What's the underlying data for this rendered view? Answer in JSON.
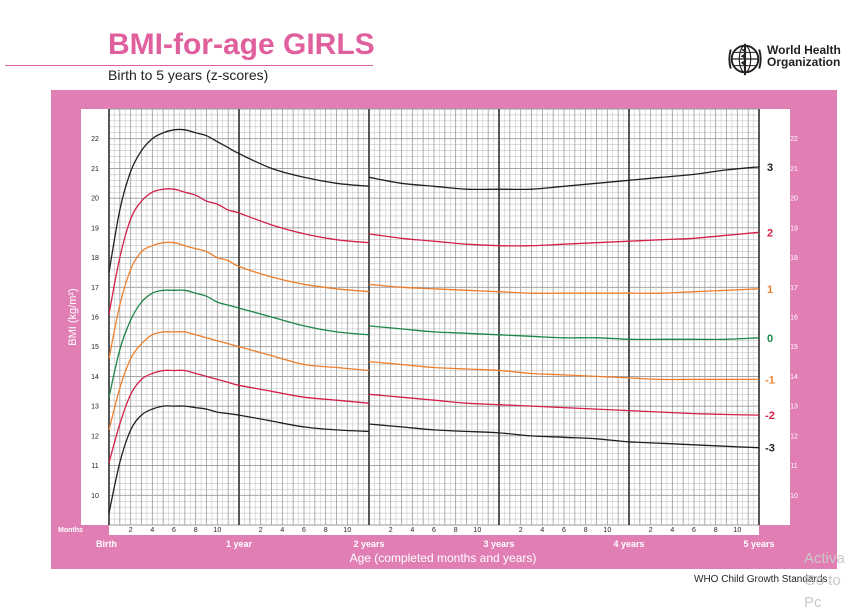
{
  "header": {
    "title": "BMI-for-age GIRLS",
    "subtitle": "Birth to 5 years (z-scores)",
    "org_line1": "World Health",
    "org_line2": "Organization",
    "logo_icon": "who-emblem-icon"
  },
  "footer": {
    "text": "WHO Child Growth Standards",
    "watermark_line1": "Activa",
    "watermark_line2": "Go to Pc"
  },
  "colors": {
    "frame": "#e17fb5",
    "grid": "#9a9a9a",
    "sd3": "#231f20",
    "sd2": "#d4204a",
    "sd1": "#ee7f2d",
    "median": "#1d8648",
    "title": "#e0609e"
  },
  "chart_data": {
    "type": "line",
    "title": "BMI-for-age GIRLS",
    "subtitle": "Birth to 5 years (z-scores)",
    "xlabel": "Age (completed months and years)",
    "ylabel": "BMI (kg/m²)",
    "x_unit_label": "Months",
    "xlim": [
      0,
      60
    ],
    "ylim": [
      9,
      23
    ],
    "grid": true,
    "y_ticks": [
      10,
      11,
      12,
      13,
      14,
      15,
      16,
      17,
      18,
      19,
      20,
      21,
      22
    ],
    "x_month_ticks": [
      2,
      4,
      6,
      8,
      10
    ],
    "x_year_labels": [
      {
        "month": 0,
        "label": "Birth"
      },
      {
        "month": 12,
        "label": "1 year"
      },
      {
        "month": 24,
        "label": "2 years"
      },
      {
        "month": 36,
        "label": "3 years"
      },
      {
        "month": 48,
        "label": "4 years"
      },
      {
        "month": 60,
        "label": "5 years"
      }
    ],
    "series": [
      {
        "name": "3",
        "color": "#231f20",
        "x": [
          0,
          1,
          2,
          3,
          4,
          5,
          6,
          7,
          8,
          9,
          10,
          11,
          12,
          15,
          18,
          21,
          24,
          24,
          27,
          30,
          33,
          36,
          39,
          42,
          45,
          48,
          51,
          54,
          57,
          60
        ],
        "y": [
          17.5,
          19.6,
          20.9,
          21.6,
          22.0,
          22.2,
          22.3,
          22.3,
          22.2,
          22.1,
          21.9,
          21.7,
          21.5,
          21.0,
          20.7,
          20.5,
          20.4,
          20.7,
          20.5,
          20.4,
          20.3,
          20.3,
          20.3,
          20.4,
          20.5,
          20.6,
          20.7,
          20.8,
          20.95,
          21.05
        ]
      },
      {
        "name": "2",
        "color": "#d4204a",
        "x": [
          0,
          1,
          2,
          3,
          4,
          5,
          6,
          7,
          8,
          9,
          10,
          11,
          12,
          15,
          18,
          21,
          24,
          24,
          27,
          30,
          33,
          36,
          39,
          42,
          45,
          48,
          51,
          54,
          57,
          60
        ],
        "y": [
          16.1,
          18.0,
          19.3,
          19.9,
          20.2,
          20.3,
          20.3,
          20.2,
          20.1,
          19.9,
          19.8,
          19.6,
          19.5,
          19.1,
          18.8,
          18.6,
          18.5,
          18.8,
          18.65,
          18.55,
          18.45,
          18.4,
          18.4,
          18.45,
          18.5,
          18.55,
          18.6,
          18.65,
          18.75,
          18.85
        ]
      },
      {
        "name": "1",
        "color": "#ee7f2d",
        "x": [
          0,
          1,
          2,
          3,
          4,
          5,
          6,
          7,
          8,
          9,
          10,
          11,
          12,
          15,
          18,
          21,
          24,
          24,
          27,
          30,
          33,
          36,
          39,
          42,
          45,
          48,
          51,
          54,
          57,
          60
        ],
        "y": [
          14.6,
          16.4,
          17.6,
          18.2,
          18.4,
          18.5,
          18.5,
          18.4,
          18.3,
          18.2,
          18.0,
          17.9,
          17.7,
          17.35,
          17.1,
          16.95,
          16.85,
          17.1,
          17.0,
          16.95,
          16.9,
          16.85,
          16.8,
          16.8,
          16.8,
          16.8,
          16.8,
          16.85,
          16.9,
          16.95
        ]
      },
      {
        "name": "0",
        "color": "#1d8648",
        "x": [
          0,
          1,
          2,
          3,
          4,
          5,
          6,
          7,
          8,
          9,
          10,
          11,
          12,
          15,
          18,
          21,
          24,
          24,
          27,
          30,
          33,
          36,
          39,
          42,
          45,
          48,
          51,
          54,
          57,
          60
        ],
        "y": [
          13.3,
          14.9,
          15.9,
          16.5,
          16.8,
          16.9,
          16.9,
          16.9,
          16.8,
          16.7,
          16.5,
          16.4,
          16.3,
          16.0,
          15.7,
          15.5,
          15.4,
          15.7,
          15.6,
          15.5,
          15.45,
          15.4,
          15.35,
          15.3,
          15.3,
          15.25,
          15.25,
          15.25,
          15.25,
          15.3
        ]
      },
      {
        "name": "-1",
        "color": "#ee7f2d",
        "x": [
          0,
          1,
          2,
          3,
          4,
          5,
          6,
          7,
          8,
          9,
          10,
          11,
          12,
          15,
          18,
          21,
          24,
          24,
          27,
          30,
          33,
          36,
          39,
          42,
          45,
          48,
          51,
          54,
          57,
          60
        ],
        "y": [
          12.2,
          13.6,
          14.6,
          15.1,
          15.4,
          15.5,
          15.5,
          15.5,
          15.4,
          15.3,
          15.2,
          15.1,
          15.0,
          14.7,
          14.4,
          14.3,
          14.2,
          14.5,
          14.4,
          14.3,
          14.25,
          14.2,
          14.1,
          14.05,
          14.0,
          13.95,
          13.9,
          13.9,
          13.9,
          13.9
        ]
      },
      {
        "name": "-2",
        "color": "#d4204a",
        "x": [
          0,
          1,
          2,
          3,
          4,
          5,
          6,
          7,
          8,
          9,
          10,
          11,
          12,
          15,
          18,
          21,
          24,
          24,
          27,
          30,
          33,
          36,
          39,
          42,
          45,
          48,
          51,
          54,
          57,
          60
        ],
        "y": [
          11.1,
          12.4,
          13.4,
          13.9,
          14.1,
          14.2,
          14.2,
          14.2,
          14.1,
          14.0,
          13.9,
          13.8,
          13.7,
          13.5,
          13.3,
          13.2,
          13.1,
          13.4,
          13.3,
          13.2,
          13.1,
          13.05,
          13.0,
          12.95,
          12.9,
          12.85,
          12.8,
          12.75,
          12.72,
          12.7
        ]
      },
      {
        "name": "-3",
        "color": "#231f20",
        "x": [
          0,
          1,
          2,
          3,
          4,
          5,
          6,
          7,
          8,
          9,
          10,
          11,
          12,
          15,
          18,
          21,
          24,
          24,
          27,
          30,
          33,
          36,
          39,
          42,
          45,
          48,
          51,
          54,
          57,
          60
        ],
        "y": [
          9.4,
          11.1,
          12.2,
          12.7,
          12.9,
          13.0,
          13.0,
          13.0,
          12.95,
          12.9,
          12.8,
          12.75,
          12.7,
          12.5,
          12.3,
          12.2,
          12.15,
          12.4,
          12.3,
          12.2,
          12.15,
          12.1,
          12.0,
          11.95,
          11.9,
          11.8,
          11.75,
          11.7,
          11.65,
          11.6
        ]
      }
    ]
  }
}
